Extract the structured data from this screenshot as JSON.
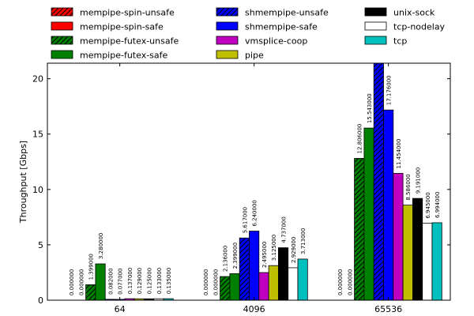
{
  "chart_data": {
    "type": "bar",
    "ylabel": "Throughput [Gbps]",
    "xlabel": "",
    "title": "",
    "categories": [
      "64",
      "4096",
      "65536"
    ],
    "ylim": [
      0,
      21.4
    ],
    "yticks": [
      0,
      5,
      10,
      15,
      20
    ],
    "legend_position": "top",
    "grid": false,
    "series": [
      {
        "name": "mempipe-spin-unsafe",
        "color": "#ff0000",
        "hatch": true,
        "values": [
          0.0,
          0.0,
          0.0
        ],
        "labels": [
          "0.000000",
          "0.000000",
          "0.000000"
        ]
      },
      {
        "name": "mempipe-spin-safe",
        "color": "#ff0000",
        "hatch": false,
        "values": [
          0.0,
          0.0,
          0.0
        ],
        "labels": [
          "0.000000",
          "0.000000",
          "0.000000"
        ]
      },
      {
        "name": "mempipe-futex-unsafe",
        "color": "#008000",
        "hatch": true,
        "values": [
          1.399,
          2.136,
          12.806
        ],
        "labels": [
          "1.399000",
          "2.136000",
          "12.806000"
        ]
      },
      {
        "name": "mempipe-futex-safe",
        "color": "#008000",
        "hatch": false,
        "values": [
          3.28,
          2.399,
          15.543
        ],
        "labels": [
          "3.280000",
          "2.399000",
          "15.543000"
        ]
      },
      {
        "name": "shmempipe-unsafe",
        "color": "#0000ff",
        "hatch": true,
        "values": [
          0.082,
          5.617,
          21.4
        ],
        "labels": [
          "0.082000",
          "5.617000",
          ""
        ]
      },
      {
        "name": "shmempipe-safe",
        "color": "#0000ff",
        "hatch": false,
        "values": [
          0.077,
          6.24,
          17.176
        ],
        "labels": [
          "0.077000",
          "6.240000",
          "17.176000"
        ]
      },
      {
        "name": "vmsplice-coop",
        "color": "#c000c0",
        "hatch": false,
        "values": [
          0.137,
          2.495,
          11.454
        ],
        "labels": [
          "0.137000",
          "2.495000",
          "11.454000"
        ]
      },
      {
        "name": "pipe",
        "color": "#bfbf00",
        "hatch": false,
        "values": [
          0.129,
          3.125,
          8.586
        ],
        "labels": [
          "0.129000",
          "3.125000",
          "8.586000"
        ]
      },
      {
        "name": "unix-sock",
        "color": "#000000",
        "hatch": false,
        "values": [
          0.125,
          4.737,
          9.191
        ],
        "labels": [
          "0.125000",
          "4.737000",
          "9.191000"
        ]
      },
      {
        "name": "tcp-nodelay",
        "color": "#ffffff",
        "hatch": false,
        "values": [
          0.133,
          2.929,
          6.945
        ],
        "labels": [
          "0.133000",
          "2.929000",
          "6.945000"
        ]
      },
      {
        "name": "tcp",
        "color": "#00bfbf",
        "hatch": false,
        "values": [
          0.135,
          3.713,
          6.994
        ],
        "labels": [
          "0.135000",
          "3.713000",
          "6.994000"
        ]
      }
    ]
  }
}
